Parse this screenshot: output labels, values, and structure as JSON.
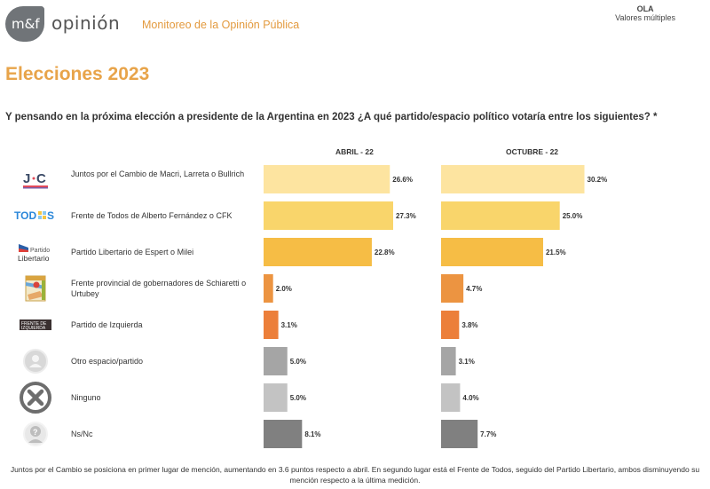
{
  "header": {
    "logo_text": "m&f",
    "brand": "opinión",
    "subtitle": "Monitoreo de la Opinión Pública",
    "ola_label": "OLA",
    "ola_value": "Valores múltiples"
  },
  "title": "Elecciones 2023",
  "question": "Y pensando en la próxima elección a presidente de la Argentina en 2023 ¿A qué partido/espacio político votaría entre los siguientes? *",
  "rows": [
    {
      "label": "Juntos por el Cambio de Macri, Larreta o Bullrich",
      "icon": "juntos-por-el-cambio-logo",
      "color": "#fde4a0"
    },
    {
      "label": "Frente de Todos de Alberto Fernández o CFK",
      "icon": "frente-de-todos-logo",
      "color": "#f9d56b"
    },
    {
      "label": "Partido Libertario de Espert o Milei",
      "icon": "partido-libertario-logo",
      "color": "#f6bd45"
    },
    {
      "label": "Frente provincial de gobernadores de Schiaretti o Urtubey",
      "icon": "frente-provincial-logo",
      "color": "#ec9441"
    },
    {
      "label": "Partido de Izquierda",
      "icon": "frente-de-izquierda-logo",
      "color": "#ec7f3a"
    },
    {
      "label": "Otro espacio/partido",
      "icon": "user-icon",
      "color": "#a5a5a5"
    },
    {
      "label": "Ninguno",
      "icon": "x-circle-icon",
      "color": "#c3c3c3"
    },
    {
      "label": "Ns/Nc",
      "icon": "question-person-icon",
      "color": "#808080"
    }
  ],
  "chart_data": {
    "type": "bar",
    "orientation": "horizontal",
    "title": "Elecciones 2023",
    "categories": [
      "Juntos por el Cambio de Macri, Larreta o Bullrich",
      "Frente de Todos de Alberto Fernández o CFK",
      "Partido Libertario de Espert o Milei",
      "Frente provincial de gobernadores de Schiaretti o Urtubey",
      "Partido de Izquierda",
      "Otro espacio/partido",
      "Ninguno",
      "Ns/Nc"
    ],
    "series": [
      {
        "name": "ABRIL - 22",
        "values": [
          26.6,
          27.3,
          22.8,
          2.0,
          3.1,
          5.0,
          5.0,
          8.1
        ],
        "labels": [
          "26.6%",
          "27.3%",
          "22.8%",
          "2.0%",
          "3.1%",
          "5.0%",
          "5.0%",
          "8.1%"
        ]
      },
      {
        "name": "OCTUBRE - 22",
        "values": [
          30.2,
          25.0,
          21.5,
          4.7,
          3.8,
          3.1,
          4.0,
          7.7
        ],
        "labels": [
          "30.2%",
          "25.0%",
          "21.5%",
          "4.7%",
          "3.8%",
          "3.1%",
          "4.0%",
          "7.7%"
        ]
      }
    ],
    "xlim": [
      0,
      32
    ],
    "unit": "%",
    "grid": false,
    "legend": "none"
  },
  "footnote": "Juntos por el Cambio se posiciona en primer lugar de mención, aumentando en 3.6 puntos respecto a abril. En segundo lugar está el Frente de Todos, seguido del Partido Libertario, ambos disminuyendo su mención respecto a la última medición."
}
